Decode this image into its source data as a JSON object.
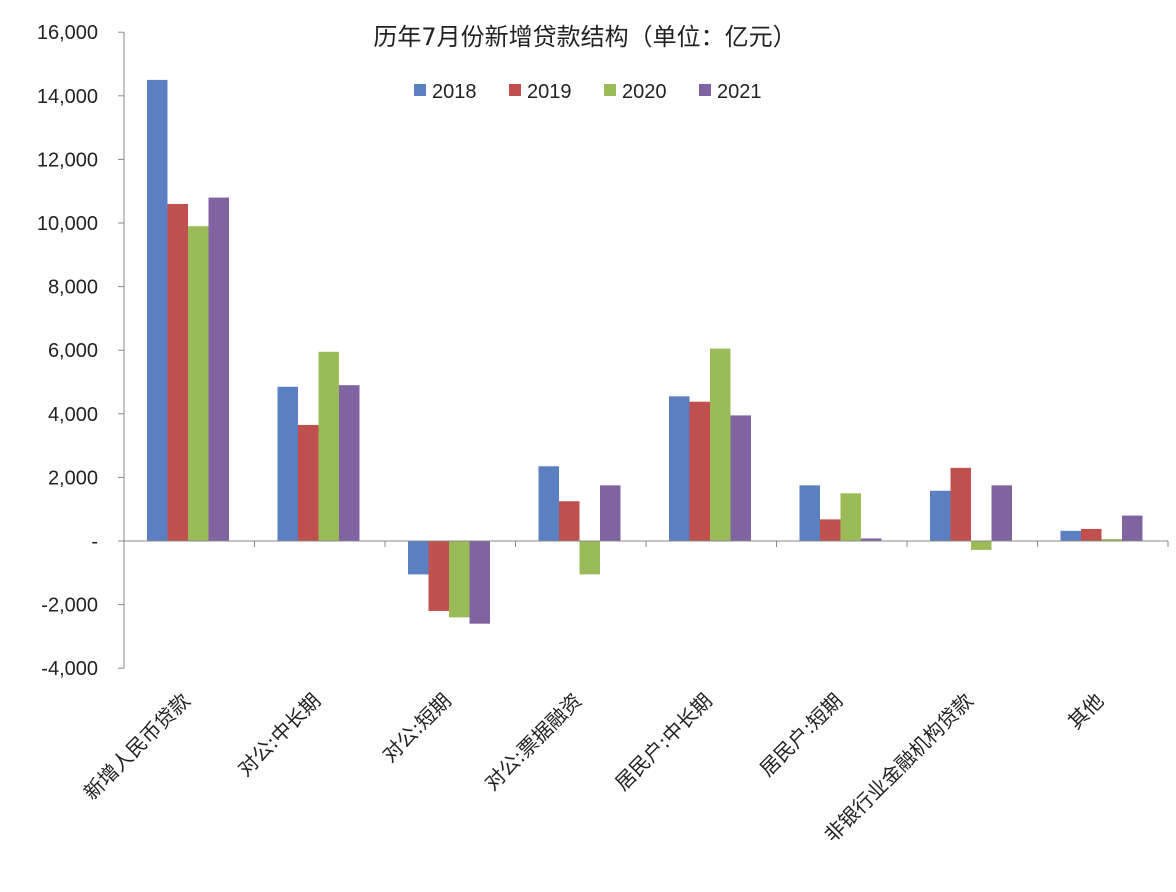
{
  "chart_data": {
    "type": "bar",
    "title": "历年7月份新增贷款结构（单位：亿元）",
    "categories": [
      "新增人民币贷款",
      "对公:中长期",
      "对公:短期",
      "对公:票据融资",
      "居民户:中长期",
      "居民户:短期",
      "非银行业金融机构贷款",
      "其他"
    ],
    "series": [
      {
        "name": "2018",
        "color": "#5b7fc0",
        "values": [
          14500,
          4850,
          -1050,
          2350,
          4550,
          1750,
          1580,
          320
        ]
      },
      {
        "name": "2019",
        "color": "#c0504d",
        "values": [
          10600,
          3650,
          -2200,
          1250,
          4380,
          680,
          2300,
          380
        ]
      },
      {
        "name": "2020",
        "color": "#9bbb59",
        "values": [
          9900,
          5950,
          -2400,
          -1050,
          6050,
          1500,
          -280,
          60
        ]
      },
      {
        "name": "2021",
        "color": "#8064a2",
        "values": [
          10800,
          4900,
          -2600,
          1750,
          3950,
          80,
          1750,
          800
        ]
      }
    ],
    "y_ticks": [
      {
        "value": 16000,
        "label": "16,000"
      },
      {
        "value": 14000,
        "label": "14,000"
      },
      {
        "value": 12000,
        "label": "12,000"
      },
      {
        "value": 10000,
        "label": "10,000"
      },
      {
        "value": 8000,
        "label": "8,000"
      },
      {
        "value": 6000,
        "label": "6,000"
      },
      {
        "value": 4000,
        "label": "4,000"
      },
      {
        "value": 2000,
        "label": "2,000"
      },
      {
        "value": 0,
        "label": "-"
      },
      {
        "value": -2000,
        "label": "-2,000"
      },
      {
        "value": -4000,
        "label": "-4,000"
      }
    ],
    "ylim": [
      -4000,
      16000
    ],
    "grid": false,
    "legend_position": "top-center"
  }
}
